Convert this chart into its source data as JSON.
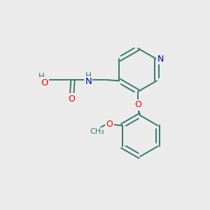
{
  "background_color": "#ebebeb",
  "bond_color": "#3a7a6a",
  "O_color": "#ff0000",
  "N_color": "#0000cc",
  "figsize": [
    3.0,
    3.0
  ],
  "dpi": 100,
  "xlim": [
    0,
    10
  ],
  "ylim": [
    0,
    10
  ]
}
